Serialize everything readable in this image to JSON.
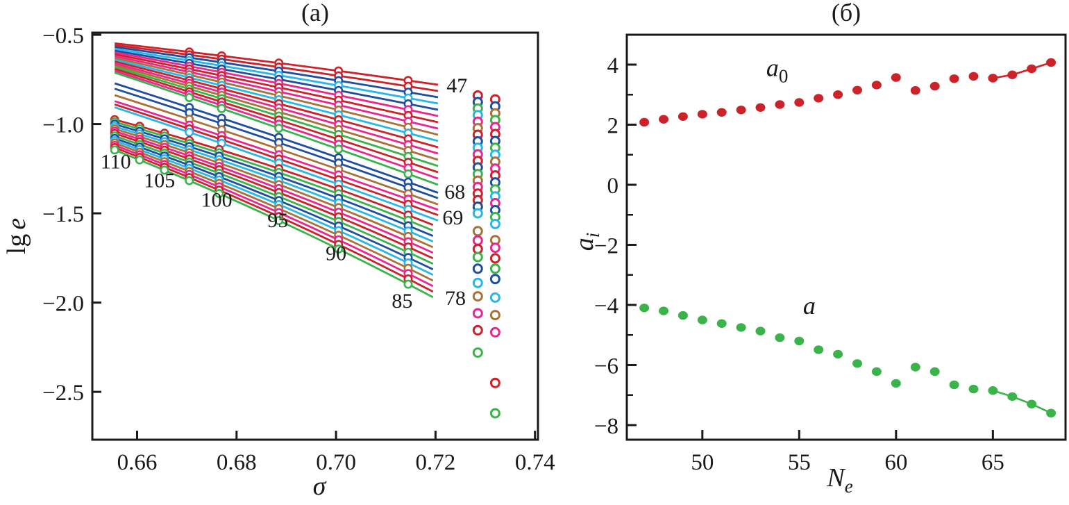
{
  "colors": {
    "red": "#cc2229",
    "blue": "#1f4ea1",
    "magenta": "#ec268f",
    "cyan": "#29b6e9",
    "green": "#3ab44a",
    "brown": "#a87239",
    "axis": "#1a1a1a"
  },
  "chart_data": [
    {
      "type": "line",
      "panel": "a",
      "title": "(a)",
      "xlabel": "σ",
      "ylabel_prefix": "lg",
      "ylabel_var": "e",
      "xlim": [
        0.651,
        0.7406
      ],
      "ylim": [
        -2.768,
        -0.488
      ],
      "grid": false,
      "x_ticks": [
        0.66,
        0.68,
        0.7,
        0.72,
        0.74
      ],
      "x_tick_labels": [
        "0.66",
        "0.68",
        "0.70",
        "0.72",
        "0.74"
      ],
      "y_ticks": [
        -0.5,
        -1.0,
        -1.5,
        -2.0,
        -2.5
      ],
      "y_tick_labels": [
        "−0.5",
        "−1.0",
        "−1.5",
        "−2.0",
        "−2.5"
      ],
      "fans": [
        {
          "name": "upper-main-bundle",
          "x_start": 0.6555,
          "x_end": 0.7205,
          "bow": 0.015,
          "marker_x": [
            0.6705,
            0.677,
            0.6885,
            0.7005,
            0.7145
          ],
          "lines": [
            {
              "c": "red",
              "y0": -0.548,
              "y1": -0.78
            },
            {
              "c": "red",
              "y0": -0.558,
              "y1": -0.815
            },
            {
              "c": "blue",
              "y0": -0.568,
              "y1": -0.85
            },
            {
              "c": "cyan",
              "y0": -0.579,
              "y1": -0.885
            },
            {
              "c": "blue",
              "y0": -0.589,
              "y1": -0.92
            },
            {
              "c": "magenta",
              "y0": -0.599,
              "y1": -0.955
            },
            {
              "c": "red",
              "y0": -0.609,
              "y1": -0.99
            },
            {
              "c": "magenta",
              "y0": -0.62,
              "y1": -1.025
            },
            {
              "c": "brown",
              "y0": -0.63,
              "y1": -1.06
            },
            {
              "c": "cyan",
              "y0": -0.64,
              "y1": -1.095
            },
            {
              "c": "red",
              "y0": -0.65,
              "y1": -1.13
            },
            {
              "c": "magenta",
              "y0": -0.661,
              "y1": -1.165
            },
            {
              "c": "brown",
              "y0": -0.671,
              "y1": -1.2
            },
            {
              "c": "green",
              "y0": -0.681,
              "y1": -1.235
            },
            {
              "c": "red",
              "y0": -0.691,
              "y1": -1.27
            },
            {
              "c": "magenta",
              "y0": -0.702,
              "y1": -1.305
            },
            {
              "c": "green",
              "y0": -0.712,
              "y1": -1.34
            }
          ]
        },
        {
          "name": "upper-sub-bundle",
          "x_start": 0.6555,
          "x_end": 0.7205,
          "bow": 0.018,
          "marker_x": [
            0.6705,
            0.677,
            0.6885,
            0.7005,
            0.7145
          ],
          "lines": [
            {
              "c": "blue",
              "y0": -0.772,
              "y1": -1.385
            },
            {
              "c": "blue",
              "y0": -0.802,
              "y1": -1.415
            },
            {
              "c": "brown",
              "y0": -0.838,
              "y1": -1.45
            },
            {
              "c": "magenta",
              "y0": -0.872,
              "y1": -1.48
            },
            {
              "c": "red",
              "y0": -0.89,
              "y1": -1.51
            },
            {
              "c": "cyan",
              "y0": -0.906,
              "y1": -1.54
            }
          ]
        },
        {
          "name": "lower-bundle",
          "x_start": 0.6555,
          "x_end": 0.7195,
          "bow": 0.06,
          "marker_x": [
            0.6555,
            0.6605,
            0.6655,
            0.6705,
            0.6765,
            0.6885,
            0.7005,
            0.7145
          ],
          "lines": [
            {
              "c": "red",
              "y0": -0.975,
              "y1": -1.565
            },
            {
              "c": "green",
              "y0": -0.988,
              "y1": -1.596
            },
            {
              "c": "blue",
              "y0": -1.001,
              "y1": -1.627
            },
            {
              "c": "cyan",
              "y0": -1.014,
              "y1": -1.658
            },
            {
              "c": "brown",
              "y0": -1.027,
              "y1": -1.69
            },
            {
              "c": "magenta",
              "y0": -1.04,
              "y1": -1.721
            },
            {
              "c": "red",
              "y0": -1.053,
              "y1": -1.752
            },
            {
              "c": "green",
              "y0": -1.067,
              "y1": -1.783
            },
            {
              "c": "blue",
              "y0": -1.08,
              "y1": -1.814
            },
            {
              "c": "cyan",
              "y0": -1.093,
              "y1": -1.845
            },
            {
              "c": "brown",
              "y0": -1.106,
              "y1": -1.877
            },
            {
              "c": "magenta",
              "y0": -1.119,
              "y1": -1.908
            },
            {
              "c": "red",
              "y0": -1.132,
              "y1": -1.939
            },
            {
              "c": "green",
              "y0": -1.145,
              "y1": -1.97
            }
          ]
        }
      ],
      "isolated_columns": [
        {
          "x": 0.7285,
          "circles": [
            {
              "y": -0.84,
              "c": "red"
            },
            {
              "y": -0.877,
              "c": "blue"
            },
            {
              "y": -0.913,
              "c": "green"
            },
            {
              "y": -0.95,
              "c": "cyan"
            },
            {
              "y": -0.987,
              "c": "magenta"
            },
            {
              "y": -1.023,
              "c": "brown"
            },
            {
              "y": -1.06,
              "c": "red"
            },
            {
              "y": -1.097,
              "c": "blue"
            },
            {
              "y": -1.133,
              "c": "cyan"
            },
            {
              "y": -1.17,
              "c": "magenta"
            },
            {
              "y": -1.207,
              "c": "red"
            },
            {
              "y": -1.243,
              "c": "blue"
            },
            {
              "y": -1.28,
              "c": "green"
            },
            {
              "y": -1.317,
              "c": "brown"
            },
            {
              "y": -1.353,
              "c": "magenta"
            },
            {
              "y": -1.39,
              "c": "red"
            },
            {
              "y": -1.427,
              "c": "red"
            },
            {
              "y": -1.463,
              "c": "blue"
            },
            {
              "y": -1.5,
              "c": "cyan"
            },
            {
              "y": -1.6,
              "c": "brown"
            },
            {
              "y": -1.652,
              "c": "magenta"
            },
            {
              "y": -1.7,
              "c": "red"
            },
            {
              "y": -1.745,
              "c": "green"
            },
            {
              "y": -1.81,
              "c": "blue"
            },
            {
              "y": -1.89,
              "c": "cyan"
            },
            {
              "y": -1.965,
              "c": "brown"
            },
            {
              "y": -2.06,
              "c": "magenta"
            },
            {
              "y": -2.155,
              "c": "red"
            },
            {
              "y": -2.28,
              "c": "green"
            }
          ]
        },
        {
          "x": 0.732,
          "circles": [
            {
              "y": -0.862,
              "c": "red"
            },
            {
              "y": -0.901,
              "c": "blue"
            },
            {
              "y": -0.94,
              "c": "brown"
            },
            {
              "y": -0.978,
              "c": "green"
            },
            {
              "y": -1.017,
              "c": "magenta"
            },
            {
              "y": -1.056,
              "c": "red"
            },
            {
              "y": -1.095,
              "c": "blue"
            },
            {
              "y": -1.133,
              "c": "green"
            },
            {
              "y": -1.172,
              "c": "cyan"
            },
            {
              "y": -1.211,
              "c": "brown"
            },
            {
              "y": -1.25,
              "c": "magenta"
            },
            {
              "y": -1.288,
              "c": "red"
            },
            {
              "y": -1.327,
              "c": "blue"
            },
            {
              "y": -1.366,
              "c": "green"
            },
            {
              "y": -1.405,
              "c": "cyan"
            },
            {
              "y": -1.443,
              "c": "magenta"
            },
            {
              "y": -1.482,
              "c": "blue"
            },
            {
              "y": -1.521,
              "c": "green"
            },
            {
              "y": -1.56,
              "c": "cyan"
            },
            {
              "y": -1.65,
              "c": "brown"
            },
            {
              "y": -1.693,
              "c": "magenta"
            },
            {
              "y": -1.752,
              "c": "red"
            },
            {
              "y": -1.81,
              "c": "green"
            },
            {
              "y": -1.868,
              "c": "blue"
            },
            {
              "y": -1.972,
              "c": "cyan"
            },
            {
              "y": -2.07,
              "c": "brown"
            },
            {
              "y": -2.166,
              "c": "magenta"
            },
            {
              "y": -2.45,
              "c": "red"
            },
            {
              "y": -2.62,
              "c": "green"
            }
          ]
        }
      ],
      "curve_labels": [
        {
          "text": "110",
          "x": 0.6557,
          "y": -1.205,
          "anchor": "middle"
        },
        {
          "text": "105",
          "x": 0.6645,
          "y": -1.31,
          "anchor": "middle"
        },
        {
          "text": "100",
          "x": 0.676,
          "y": -1.42,
          "anchor": "middle"
        },
        {
          "text": "95",
          "x": 0.6883,
          "y": -1.535,
          "anchor": "middle"
        },
        {
          "text": "90",
          "x": 0.7,
          "y": -1.72,
          "anchor": "middle"
        },
        {
          "text": "85",
          "x": 0.7133,
          "y": -1.985,
          "anchor": "middle"
        },
        {
          "text": "47",
          "x": 0.7222,
          "y": -0.78,
          "anchor": "start"
        },
        {
          "text": "68",
          "x": 0.7218,
          "y": -1.375,
          "anchor": "start"
        },
        {
          "text": "69",
          "x": 0.7214,
          "y": -1.52,
          "anchor": "start"
        },
        {
          "text": "78",
          "x": 0.7219,
          "y": -1.97,
          "anchor": "start"
        }
      ]
    },
    {
      "type": "scatter",
      "panel": "б",
      "title": "(б)",
      "xlabel_base": "N",
      "xlabel_sub": "e",
      "ylabel_base": "a",
      "ylabel_sub": "i",
      "xlim": [
        46.1,
        68.75
      ],
      "ylim": [
        -8.486,
        4.994
      ],
      "grid": false,
      "x_ticks": [
        50,
        55,
        60,
        65
      ],
      "x_tick_labels": [
        "50",
        "55",
        "60",
        "65"
      ],
      "y_ticks": [
        4,
        2,
        0,
        -2,
        -4,
        -6,
        -8
      ],
      "y_tick_labels": [
        "4",
        "2",
        "0",
        "−2",
        "−4",
        "−6",
        "−8"
      ],
      "y_minor_ticks": [
        3,
        1,
        -1,
        -3,
        -5,
        -7
      ],
      "x": [
        47,
        48,
        49,
        50,
        51,
        52,
        53,
        54,
        55,
        56,
        57,
        58,
        59,
        60,
        61,
        62,
        63,
        64,
        65,
        66,
        67,
        68
      ],
      "series": [
        {
          "name": "a0",
          "color": "red",
          "y": [
            2.08,
            2.18,
            2.27,
            2.35,
            2.41,
            2.49,
            2.57,
            2.67,
            2.74,
            2.88,
            3.0,
            3.15,
            3.32,
            3.57,
            3.14,
            3.28,
            3.53,
            3.61,
            3.55,
            3.66,
            3.86,
            4.07
          ],
          "connect_from_x": 65,
          "annotation": {
            "base": "a",
            "sub": "0",
            "x": 53.3,
            "y": 3.62
          }
        },
        {
          "name": "a",
          "color": "green",
          "y": [
            -4.1,
            -4.2,
            -4.35,
            -4.5,
            -4.62,
            -4.75,
            -4.87,
            -5.09,
            -5.2,
            -5.49,
            -5.64,
            -5.95,
            -6.22,
            -6.61,
            -6.07,
            -6.22,
            -6.66,
            -6.8,
            -6.85,
            -7.05,
            -7.3,
            -7.6
          ],
          "connect_from_x": 65,
          "annotation": {
            "base": "a",
            "sub": "",
            "x": 55.2,
            "y": -4.3
          }
        }
      ]
    }
  ]
}
